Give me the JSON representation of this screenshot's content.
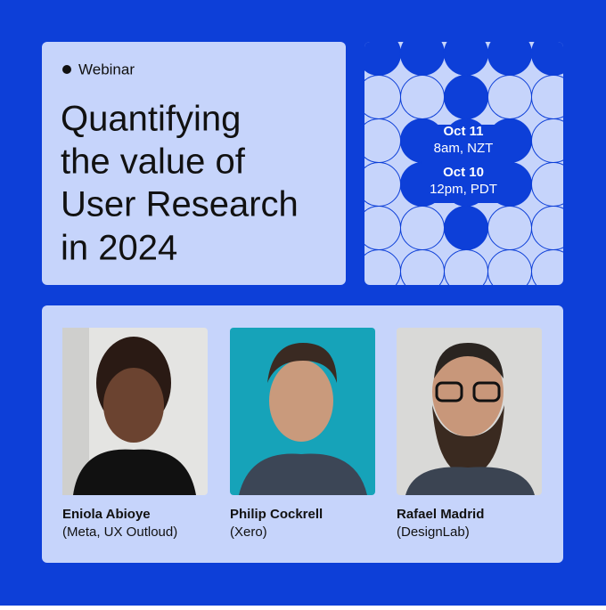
{
  "badge": "Webinar",
  "title_lines": [
    "Quantifying",
    "the value of",
    "User Research",
    "in 2024"
  ],
  "schedule": [
    {
      "date": "Oct 11",
      "time": "8am, NZT"
    },
    {
      "date": "Oct 10",
      "time": "12pm, PDT"
    }
  ],
  "speakers": [
    {
      "name": "Eniola Abioye",
      "affiliation": "(Meta, UX Outloud)"
    },
    {
      "name": "Philip Cockrell",
      "affiliation": "(Xero)"
    },
    {
      "name": "Rafael Madrid",
      "affiliation": "(DesignLab)"
    }
  ]
}
